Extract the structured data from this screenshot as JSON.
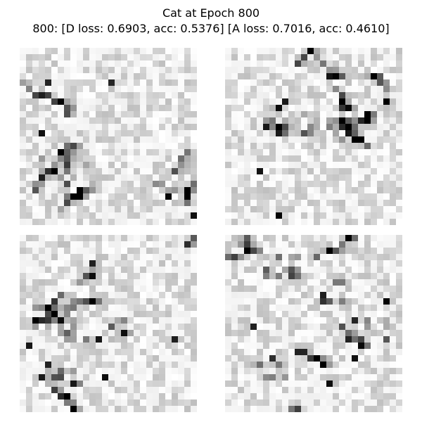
{
  "figure": {
    "title_line1": "Cat at Epoch 800",
    "title_line2": "800: [D loss: 0.6903, acc: 0.5376]  [A loss: 0.7016, acc: 0.4610]"
  },
  "colormap": "gray_r",
  "grid_size": 28,
  "samples": [
    {
      "label": "",
      "seed": 11
    },
    {
      "label": "",
      "seed": 37
    },
    {
      "label": "",
      "seed": 73
    },
    {
      "label": "",
      "seed": 129
    }
  ]
}
